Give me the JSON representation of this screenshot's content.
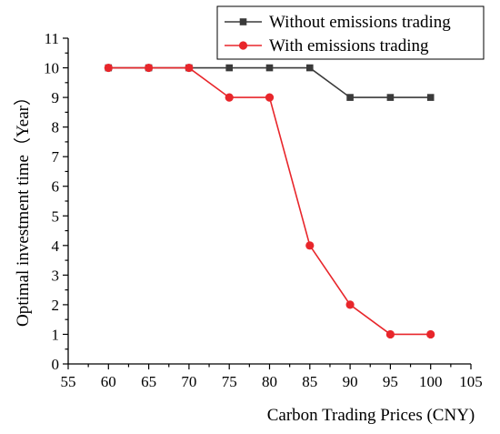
{
  "chart_data": {
    "type": "line",
    "xlabel": "Carbon Trading Prices (CNY)",
    "ylabel": "Optimal investment time（Year）",
    "xlim": [
      55,
      105
    ],
    "ylim": [
      0,
      11
    ],
    "xticks": [
      55,
      60,
      65,
      70,
      75,
      80,
      85,
      90,
      95,
      100,
      105
    ],
    "yticks": [
      0,
      1,
      2,
      3,
      4,
      5,
      6,
      7,
      8,
      9,
      10,
      11
    ],
    "grid": false,
    "legend_position": "top-right",
    "x": [
      60,
      65,
      70,
      75,
      80,
      85,
      90,
      95,
      100
    ],
    "series": [
      {
        "name": "Without emissions trading",
        "values": [
          10,
          10,
          10,
          10,
          10,
          10,
          9,
          9,
          9
        ],
        "color": "#3a3a3a",
        "marker": "square"
      },
      {
        "name": "With emissions trading",
        "values": [
          10,
          10,
          10,
          9,
          9,
          4,
          2,
          1,
          1
        ],
        "color": "#e8262b",
        "marker": "circle"
      }
    ]
  }
}
